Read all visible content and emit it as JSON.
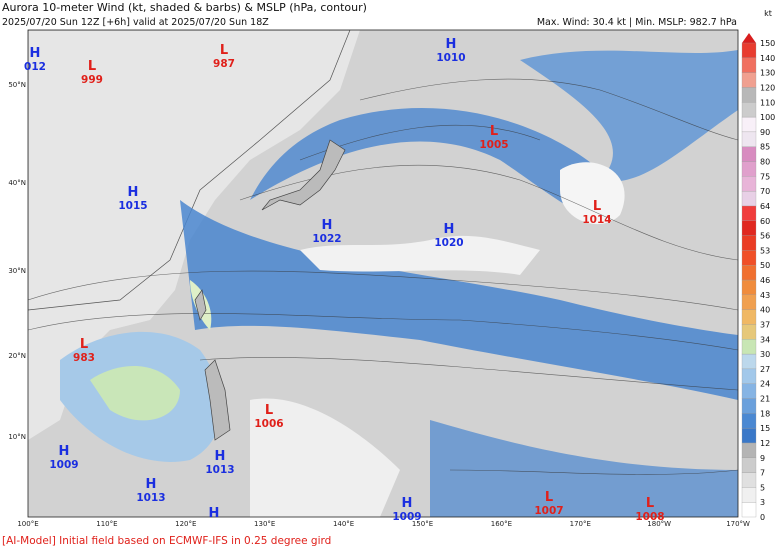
{
  "header": {
    "title": "Aurora 10-meter Wind (kt, shaded & barbs) & MSLP (hPa, contour)",
    "subtitle": "2025/07/20 Sun 12Z [+6h] valid at 2025/07/20 Sun 18Z",
    "stats": "Max. Wind: 30.4 kt | Min. MSLP: 982.7 hPa"
  },
  "map": {
    "lon_labels": [
      "100°E",
      "110°E",
      "120°E",
      "130°E",
      "140°E",
      "150°E",
      "160°E",
      "170°E",
      "180°W",
      "170°W"
    ],
    "lat_labels": [
      "50°N",
      "40°N",
      "30°N",
      "20°N",
      "10°N"
    ],
    "centers": [
      {
        "type": "H",
        "value": "012"
      },
      {
        "type": "L",
        "value": "999"
      },
      {
        "type": "L",
        "value": "987"
      },
      {
        "type": "H",
        "value": "1010"
      },
      {
        "type": "L",
        "value": "1005"
      },
      {
        "type": "H",
        "value": "1015"
      },
      {
        "type": "L",
        "value": "1014"
      },
      {
        "type": "H",
        "value": "1022"
      },
      {
        "type": "H",
        "value": "1020"
      },
      {
        "type": "L",
        "value": "983"
      },
      {
        "type": "L",
        "value": "1006"
      },
      {
        "type": "H",
        "value": "1009"
      },
      {
        "type": "H",
        "value": "1013"
      },
      {
        "type": "H",
        "value": "1013"
      },
      {
        "type": "H"
      },
      {
        "type": "L",
        "value": "1007"
      },
      {
        "type": "H",
        "value": "1009"
      },
      {
        "type": "L",
        "value": "1008"
      }
    ]
  },
  "colorbar": {
    "unit": "kt",
    "levels": [
      0,
      3,
      5,
      7,
      9,
      12,
      15,
      18,
      21,
      24,
      27,
      30,
      34,
      37,
      40,
      43,
      46,
      50,
      53,
      56,
      60,
      64,
      70,
      75,
      80,
      85,
      90,
      100,
      110,
      120,
      130,
      140,
      150
    ]
  },
  "footer": "[AI-Model] Initial field based on ECMWF-IFS in 0.25 degree gird"
}
